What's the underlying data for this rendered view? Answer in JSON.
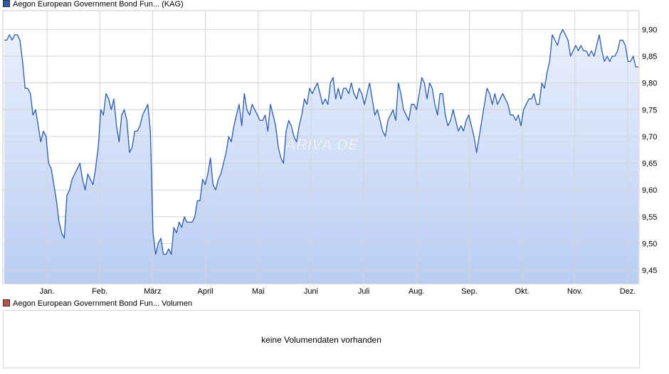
{
  "chart_data": {
    "type": "area",
    "title": "Aegon European Government Bond Fun... (KAG)",
    "series": [
      {
        "name": "Aegon European Government Bond Fun... (KAG)",
        "color": "#2a5cad",
        "values": [
          9.88,
          9.88,
          9.89,
          9.88,
          9.89,
          9.89,
          9.88,
          9.84,
          9.79,
          9.79,
          9.78,
          9.74,
          9.75,
          9.72,
          9.69,
          9.71,
          9.7,
          9.65,
          9.64,
          9.61,
          9.58,
          9.54,
          9.52,
          9.51,
          9.59,
          9.6,
          9.62,
          9.63,
          9.64,
          9.65,
          9.62,
          9.6,
          9.63,
          9.62,
          9.61,
          9.64,
          9.68,
          9.75,
          9.74,
          9.78,
          9.77,
          9.75,
          9.77,
          9.72,
          9.69,
          9.74,
          9.75,
          9.73,
          9.67,
          9.68,
          9.71,
          9.71,
          9.72,
          9.74,
          9.75,
          9.76,
          9.71,
          9.52,
          9.48,
          9.5,
          9.51,
          9.48,
          9.48,
          9.49,
          9.48,
          9.53,
          9.52,
          9.54,
          9.53,
          9.55,
          9.54,
          9.54,
          9.54,
          9.55,
          9.58,
          9.58,
          9.62,
          9.61,
          9.63,
          9.66,
          9.61,
          9.6,
          9.62,
          9.63,
          9.65,
          9.67,
          9.7,
          9.69,
          9.72,
          9.74,
          9.76,
          9.72,
          9.78,
          9.75,
          9.74,
          9.76,
          9.75,
          9.74,
          9.73,
          9.73,
          9.74,
          9.71,
          9.76,
          9.74,
          9.72,
          9.68,
          9.66,
          9.65,
          9.71,
          9.73,
          9.72,
          9.7,
          9.69,
          9.72,
          9.74,
          9.77,
          9.76,
          9.79,
          9.78,
          9.79,
          9.8,
          9.78,
          9.76,
          9.77,
          9.76,
          9.8,
          9.81,
          9.77,
          9.79,
          9.77,
          9.79,
          9.79,
          9.78,
          9.8,
          9.78,
          9.77,
          9.79,
          9.78,
          9.76,
          9.78,
          9.8,
          9.77,
          9.74,
          9.75,
          9.73,
          9.71,
          9.7,
          9.73,
          9.74,
          9.75,
          9.73,
          9.8,
          9.78,
          9.75,
          9.74,
          9.73,
          9.76,
          9.76,
          9.75,
          9.78,
          9.81,
          9.8,
          9.77,
          9.8,
          9.79,
          9.76,
          9.74,
          9.78,
          9.78,
          9.74,
          9.72,
          9.73,
          9.75,
          9.73,
          9.71,
          9.72,
          9.71,
          9.73,
          9.74,
          9.72,
          9.7,
          9.67,
          9.7,
          9.73,
          9.76,
          9.79,
          9.78,
          9.76,
          9.78,
          9.76,
          9.77,
          9.78,
          9.77,
          9.76,
          9.74,
          9.74,
          9.73,
          9.74,
          9.72,
          9.75,
          9.76,
          9.77,
          9.77,
          9.78,
          9.76,
          9.76,
          9.8,
          9.79,
          9.82,
          9.84,
          9.89,
          9.88,
          9.87,
          9.89,
          9.9,
          9.89,
          9.88,
          9.85,
          9.86,
          9.87,
          9.86,
          9.87,
          9.86,
          9.86,
          9.85,
          9.86,
          9.85,
          9.87,
          9.89,
          9.86,
          9.84,
          9.85,
          9.84,
          9.85,
          9.85,
          9.86,
          9.88,
          9.88,
          9.87,
          9.84,
          9.84,
          9.85,
          9.83,
          9.83
        ]
      }
    ],
    "x_tick_labels": [
      "Jan.",
      "Feb.",
      "März",
      "April",
      "Mai",
      "Juni",
      "Juli",
      "Aug.",
      "Sep.",
      "Okt.",
      "Nov.",
      "Dez."
    ],
    "y_ticks": [
      9.45,
      9.5,
      9.55,
      9.6,
      9.65,
      9.7,
      9.75,
      9.8,
      9.85,
      9.9
    ],
    "y_tick_labels": [
      "9,45",
      "9,50",
      "9,55",
      "9,60",
      "9,65",
      "9,70",
      "9,75",
      "9,80",
      "9,85",
      "9,90"
    ],
    "ylim": [
      9.425,
      9.935
    ],
    "y_axis_side": "right",
    "grid": true,
    "watermark": "ARIVA.DE",
    "fill_color_top": "#e9f0fc",
    "fill_color_bottom": "#b9cdf4"
  },
  "volume_panel": {
    "legend_label": "Aegon European Government Bond Fun... Volumen",
    "legend_color": "#c0504d",
    "message": "keine Volumendaten vorhanden"
  }
}
